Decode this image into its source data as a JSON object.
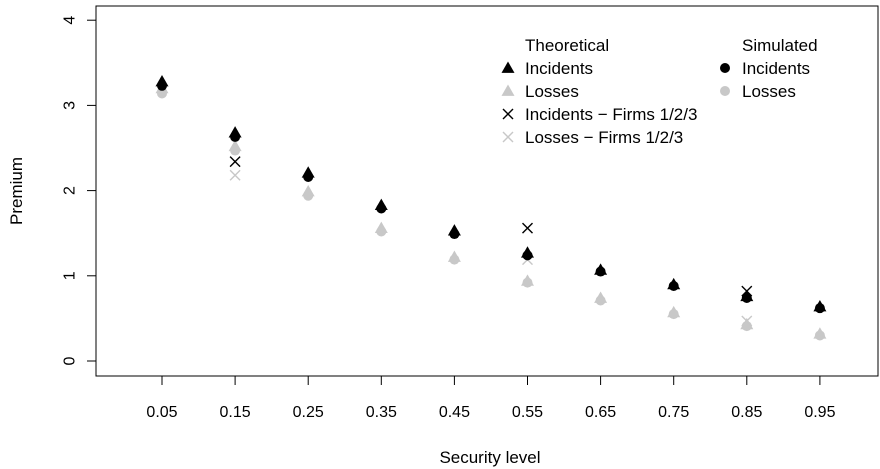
{
  "chart_data": {
    "type": "scatter",
    "title": "",
    "xlabel": "Security level",
    "ylabel": "Premium",
    "categories": [
      "0.05",
      "0.15",
      "0.25",
      "0.35",
      "0.45",
      "0.55",
      "0.65",
      "0.75",
      "0.85",
      "0.95"
    ],
    "ylim": [
      0,
      4
    ],
    "yticks": [
      "0",
      "1",
      "2",
      "3",
      "4"
    ],
    "grid": false,
    "legend_groups": [
      {
        "heading": "Theoretical",
        "entries": [
          {
            "label": "Incidents",
            "series": "theo_incidents"
          },
          {
            "label": "Losses",
            "series": "theo_losses"
          },
          {
            "label": "Incidents − Firms 1/2/3",
            "series": "firms_incidents"
          },
          {
            "label": "Losses − Firms 1/2/3",
            "series": "firms_losses"
          }
        ]
      },
      {
        "heading": "Simulated",
        "entries": [
          {
            "label": "Incidents",
            "series": "sim_incidents"
          },
          {
            "label": "Losses",
            "series": "sim_losses"
          }
        ]
      }
    ],
    "series": [
      {
        "id": "theo_incidents",
        "marker": "triangle",
        "color": "#000000",
        "x": [
          0.05,
          0.15,
          0.25,
          0.35,
          0.45,
          0.55,
          0.65,
          0.75,
          0.85,
          0.95
        ],
        "y": [
          3.28,
          2.68,
          2.21,
          1.83,
          1.53,
          1.27,
          1.07,
          0.9,
          0.76,
          0.64
        ]
      },
      {
        "id": "theo_losses",
        "marker": "triangle",
        "color": "#c8c8c8",
        "x": [
          0.05,
          0.15,
          0.25,
          0.35,
          0.45,
          0.55,
          0.65,
          0.75,
          0.85,
          0.95
        ],
        "y": [
          3.2,
          2.52,
          1.99,
          1.56,
          1.22,
          0.94,
          0.74,
          0.57,
          0.43,
          0.32
        ]
      },
      {
        "id": "firms_incidents",
        "marker": "cross",
        "color": "#000000",
        "x": [
          0.15,
          0.55,
          0.85
        ],
        "y": [
          2.34,
          1.56,
          0.82
        ]
      },
      {
        "id": "firms_losses",
        "marker": "cross",
        "color": "#c8c8c8",
        "x": [
          0.15,
          0.55,
          0.85
        ],
        "y": [
          2.18,
          1.19,
          0.47
        ]
      },
      {
        "id": "sim_incidents",
        "marker": "circle",
        "color": "#000000",
        "x": [
          0.05,
          0.15,
          0.25,
          0.35,
          0.45,
          0.55,
          0.65,
          0.75,
          0.85,
          0.95
        ],
        "y": [
          3.23,
          2.63,
          2.16,
          1.79,
          1.49,
          1.24,
          1.05,
          0.88,
          0.74,
          0.62
        ]
      },
      {
        "id": "sim_losses",
        "marker": "circle",
        "color": "#c8c8c8",
        "x": [
          0.05,
          0.15,
          0.25,
          0.35,
          0.45,
          0.55,
          0.65,
          0.75,
          0.85,
          0.95
        ],
        "y": [
          3.14,
          2.47,
          1.94,
          1.52,
          1.19,
          0.92,
          0.71,
          0.55,
          0.41,
          0.3
        ]
      }
    ]
  }
}
